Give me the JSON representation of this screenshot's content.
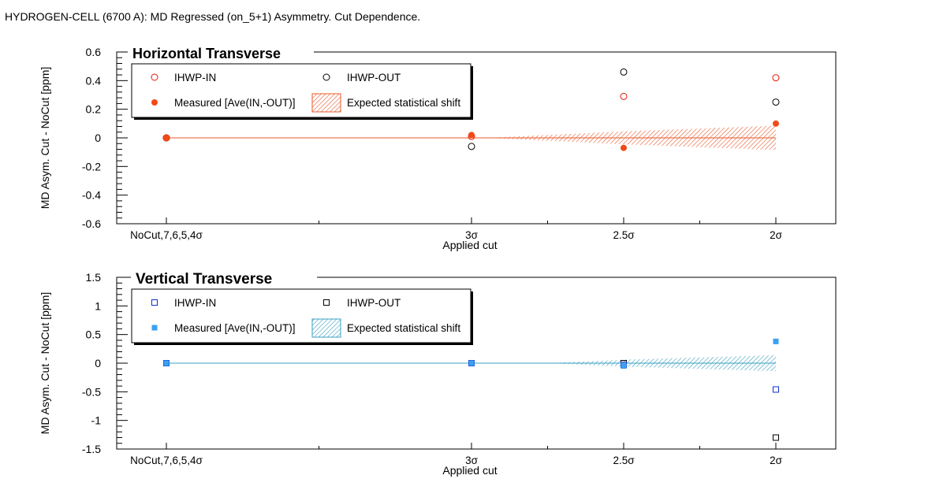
{
  "page_title": "HYDROGEN-CELL (6700 A): MD Regressed (on_5+1) Asymmetry. Cut Dependence.",
  "colors": {
    "in_h": "#e8190a",
    "measured_h": "#f04a16",
    "band_h": "#e85a2a",
    "in_v": "#1030d0",
    "measured_v": "#3aa0f0",
    "band_v": "#3aa0c0",
    "out": "#000000"
  },
  "chart_data": [
    {
      "type": "scatter",
      "title": "Horizontal Transverse",
      "xlabel": "Applied cut",
      "ylabel": "MD Asym. Cut - NoCut [ppm]",
      "categories": [
        "NoCut,7,6,5,4σ",
        "3σ",
        "2.5σ",
        "2σ"
      ],
      "ylim": [
        -0.6,
        0.6
      ],
      "yticks": [
        "0.6",
        "0.4",
        "0.2",
        "0",
        "-0.2",
        "-0.4",
        "-0.6"
      ],
      "marker": "circle",
      "legend_position": "top-left",
      "series": [
        {
          "name": "IHWP-IN",
          "values": [
            0,
            0.01,
            0.29,
            0.42
          ]
        },
        {
          "name": "IHWP-OUT",
          "values": [
            0,
            -0.06,
            0.46,
            0.25
          ]
        },
        {
          "name": "Measured [Ave(IN,-OUT)]",
          "values": [
            0,
            0.02,
            -0.07,
            0.1
          ]
        }
      ],
      "band": {
        "name": "Expected statistical shift",
        "x_start": 1.1,
        "halfwidth": [
          0,
          0,
          0.045,
          0.085
        ]
      }
    },
    {
      "type": "scatter",
      "title": "Vertical Transverse",
      "xlabel": "Applied cut",
      "ylabel": "MD Asym. Cut - NoCut [ppm]",
      "categories": [
        "NoCut,7,6,5,4σ",
        "3σ",
        "2.5σ",
        "2σ"
      ],
      "ylim": [
        -1.5,
        1.5
      ],
      "yticks": [
        "1.5",
        "1",
        "0.5",
        "0",
        "-0.5",
        "-1",
        "-1.5"
      ],
      "marker": "square",
      "legend_position": "top-left",
      "series": [
        {
          "name": "IHWP-IN",
          "values": [
            0,
            0,
            -0.03,
            -0.46
          ]
        },
        {
          "name": "IHWP-OUT",
          "values": [
            0,
            0,
            0,
            -1.3
          ]
        },
        {
          "name": "Measured [Ave(IN,-OUT)]",
          "values": [
            0,
            0,
            -0.05,
            0.38
          ]
        }
      ],
      "band": {
        "name": "Expected statistical shift",
        "x_start": 1.5,
        "halfwidth": [
          0,
          0,
          0.06,
          0.14
        ]
      }
    }
  ]
}
